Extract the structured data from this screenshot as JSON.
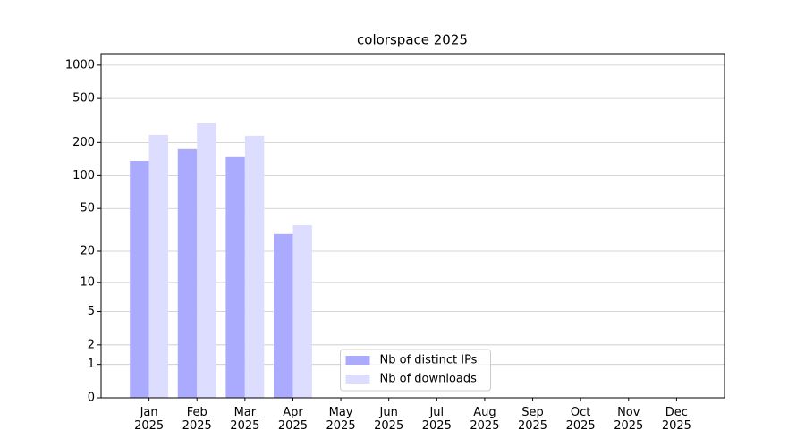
{
  "chart_data": {
    "type": "bar",
    "title": "colorspace 2025",
    "categories": [
      "Jan\n2025",
      "Feb\n2025",
      "Mar\n2025",
      "Apr\n2025",
      "May\n2025",
      "Jun\n2025",
      "Jul\n2025",
      "Aug\n2025",
      "Sep\n2025",
      "Oct\n2025",
      "Nov\n2025",
      "Dec\n2025"
    ],
    "series": [
      {
        "name": "Nb of distinct IPs",
        "color": "#aaaaff",
        "values": [
          136,
          174,
          147,
          29,
          0,
          0,
          0,
          0,
          0,
          0,
          0,
          0
        ]
      },
      {
        "name": "Nb of downloads",
        "color": "#ddddff",
        "values": [
          234,
          298,
          230,
          35,
          0,
          0,
          0,
          0,
          0,
          0,
          0,
          0
        ]
      }
    ],
    "yscale": "log1p",
    "ylim": [
      0,
      1270
    ],
    "yticks": [
      0,
      1,
      2,
      5,
      10,
      20,
      50,
      100,
      200,
      500,
      1000
    ],
    "grid": true,
    "legend": "lower center"
  }
}
